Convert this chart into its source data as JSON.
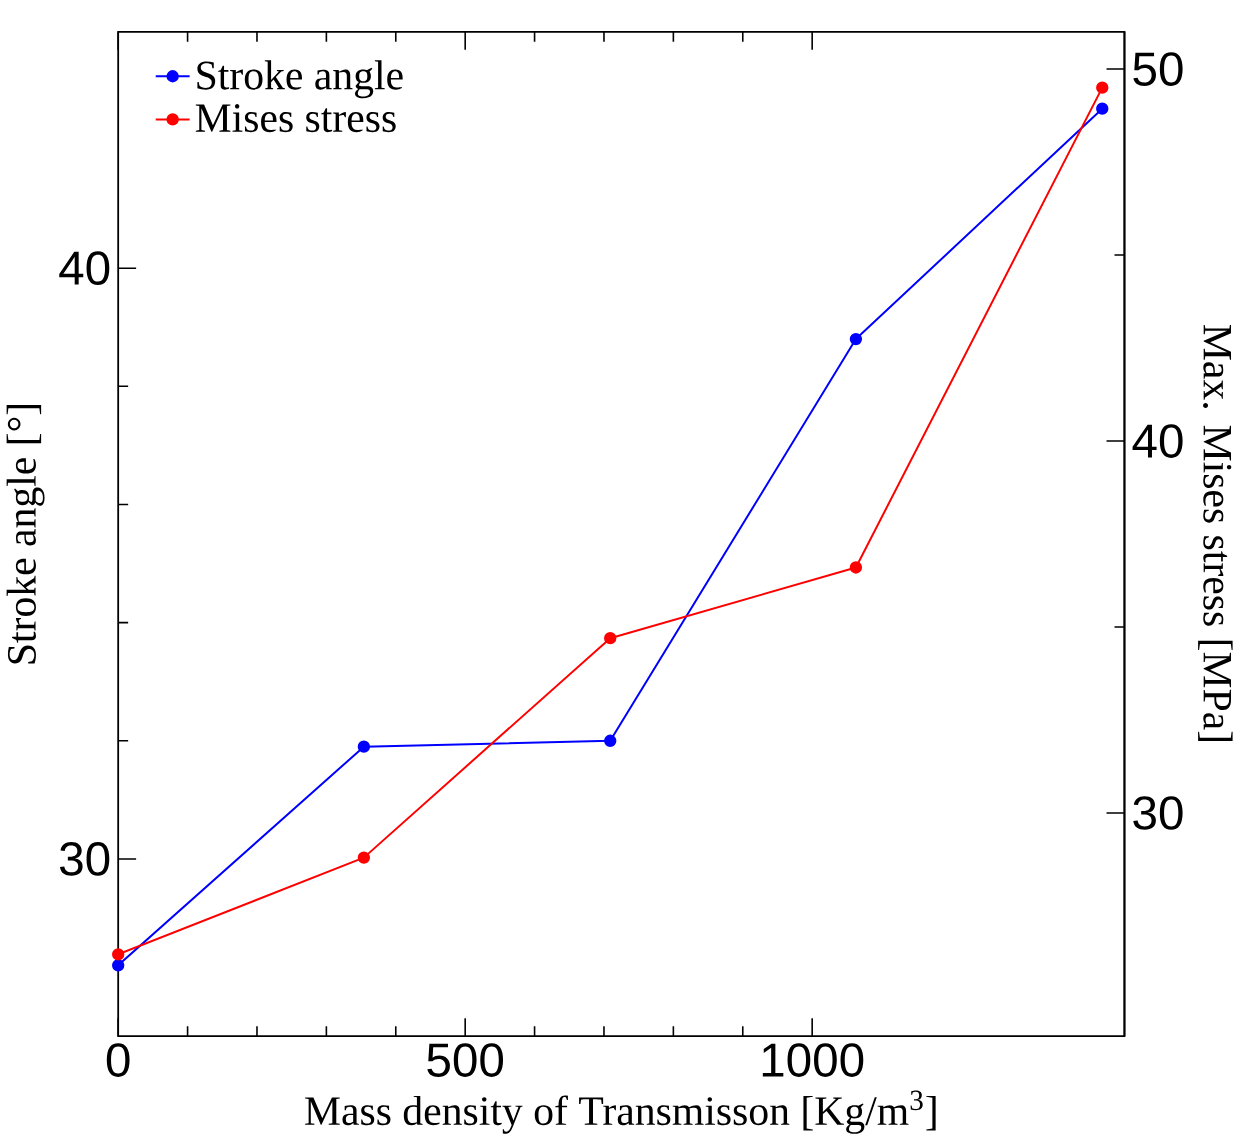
{
  "chart_data": {
    "type": "line",
    "xlabel": "Mass density of Transmisson [Kg/m$^{3}$]",
    "ylabel": "Stroke angle [°]",
    "y2label": "Max. Mises stress [MPa]",
    "x": [
      0,
      354,
      709,
      1063,
      1418
    ],
    "series": [
      {
        "name": "Stroke angle",
        "color": "#0000ff",
        "values": [
          28.2,
          31.9,
          32.0,
          38.8,
          42.7
        ]
      },
      {
        "name": "Mises stress",
        "color": "#ff0000",
        "axis": "y2",
        "values": [
          26.2,
          28.8,
          34.7,
          36.6,
          49.5
        ]
      }
    ],
    "xlim": [
      0,
      1450
    ],
    "xticks": [
      0,
      500,
      1000
    ],
    "ylim": [
      27,
      44
    ],
    "yticks": [
      30,
      40
    ],
    "y2lim": [
      24,
      51
    ],
    "y2ticks": [
      30,
      40,
      50
    ],
    "legend": "top left",
    "marker": "circle",
    "line_style": "solid",
    "grid": false
  }
}
